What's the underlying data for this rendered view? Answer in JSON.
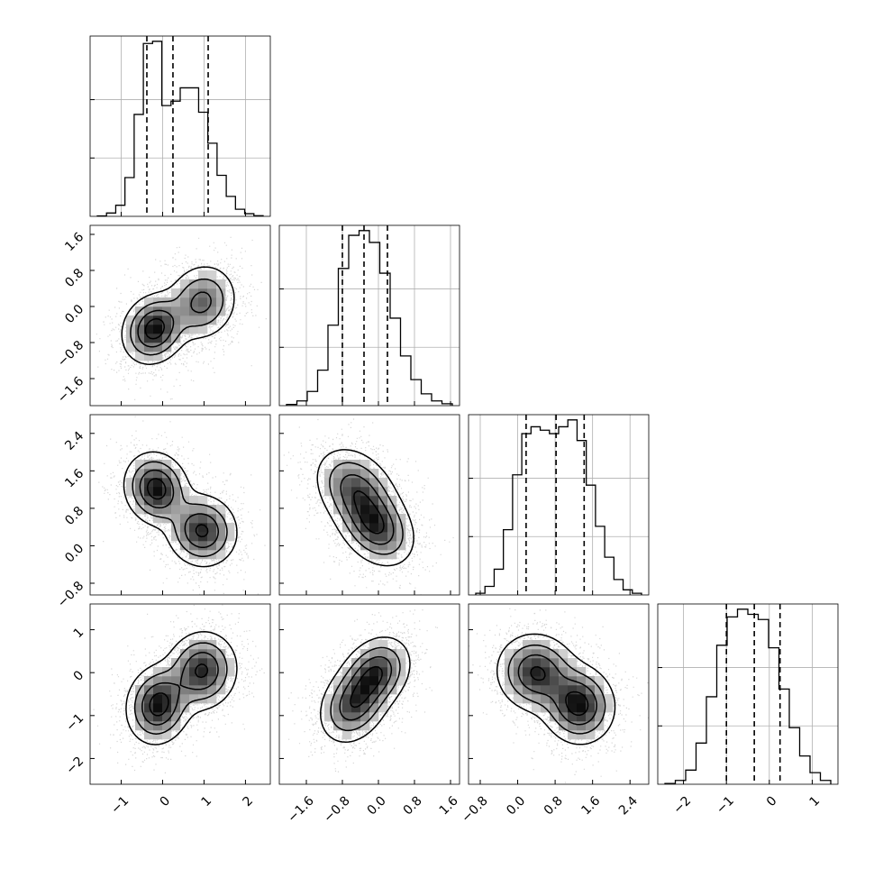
{
  "chart_data": {
    "type": "corner",
    "grid": true,
    "variables": [
      {
        "name": "",
        "range": [
          -1.75,
          2.6
        ],
        "ticks": [
          -1,
          0,
          1,
          2
        ],
        "tick_labels": [
          "−1",
          "0",
          "1",
          "2"
        ],
        "quantiles": [
          -0.38,
          0.25,
          1.1
        ]
      },
      {
        "name": "",
        "range": [
          -2.2,
          1.8
        ],
        "ticks": [
          -1.6,
          -0.8,
          0.0,
          0.8,
          1.6
        ],
        "tick_labels": [
          "−1.6",
          "−0.8",
          "0.0",
          "0.8",
          "1.6"
        ],
        "quantiles": [
          -0.8,
          -0.32,
          0.2
        ]
      },
      {
        "name": "",
        "range": [
          -1.05,
          2.8
        ],
        "ticks": [
          -0.8,
          0.0,
          0.8,
          1.6,
          2.4
        ],
        "tick_labels": [
          "−0.8",
          "0.0",
          "0.8",
          "1.6",
          "2.4"
        ],
        "quantiles": [
          0.18,
          0.82,
          1.42
        ]
      },
      {
        "name": "",
        "range": [
          -2.6,
          1.6
        ],
        "ticks": [
          -2,
          -1,
          0,
          1
        ],
        "tick_labels": [
          "−2",
          "−1",
          "0",
          "1"
        ],
        "quantiles": [
          -1.0,
          -0.35,
          0.25
        ]
      }
    ],
    "histograms": [
      {
        "counts": [
          2,
          15,
          50,
          175,
          460,
          780,
          790,
          500,
          520,
          580,
          580,
          470,
          330,
          185,
          90,
          32,
          12,
          3
        ]
      },
      {
        "counts": [
          5,
          20,
          60,
          150,
          340,
          580,
          720,
          740,
          690,
          560,
          370,
          210,
          110,
          50,
          20,
          8
        ]
      },
      {
        "counts": [
          5,
          25,
          75,
          190,
          350,
          470,
          490,
          480,
          470,
          490,
          510,
          450,
          320,
          200,
          110,
          45,
          15,
          5
        ]
      },
      {
        "counts": [
          3,
          15,
          55,
          160,
          340,
          540,
          650,
          680,
          660,
          640,
          530,
          370,
          220,
          110,
          45,
          15
        ]
      }
    ],
    "pairs": [
      {
        "x": 0,
        "y": 1,
        "modes": [
          {
            "cx": -0.2,
            "cy": -0.5,
            "sx": 0.38,
            "sy": 0.38,
            "r": 0.15,
            "w": 0.55
          },
          {
            "cx": 0.95,
            "cy": 0.1,
            "sx": 0.42,
            "sy": 0.42,
            "r": 0.1,
            "w": 0.45
          }
        ]
      },
      {
        "x": 0,
        "y": 2,
        "modes": [
          {
            "cx": -0.15,
            "cy": 1.22,
            "sx": 0.38,
            "sy": 0.38,
            "r": -0.1,
            "w": 0.5
          },
          {
            "cx": 0.95,
            "cy": 0.32,
            "sx": 0.42,
            "sy": 0.38,
            "r": -0.05,
            "w": 0.5
          }
        ]
      },
      {
        "x": 1,
        "y": 2,
        "modes": [
          {
            "cx": -0.5,
            "cy": 1.2,
            "sx": 0.45,
            "sy": 0.45,
            "r": -0.3,
            "w": 0.5
          },
          {
            "cx": -0.05,
            "cy": 0.4,
            "sx": 0.42,
            "sy": 0.42,
            "r": -0.3,
            "w": 0.5
          }
        ]
      },
      {
        "x": 0,
        "y": 3,
        "modes": [
          {
            "cx": -0.1,
            "cy": -0.75,
            "sx": 0.38,
            "sy": 0.45,
            "r": 0.1,
            "w": 0.5
          },
          {
            "cx": 0.95,
            "cy": 0.05,
            "sx": 0.42,
            "sy": 0.45,
            "r": 0.05,
            "w": 0.5
          }
        ]
      },
      {
        "x": 1,
        "y": 3,
        "modes": [
          {
            "cx": -0.05,
            "cy": 0.0,
            "sx": 0.38,
            "sy": 0.42,
            "r": 0.25,
            "w": 0.5
          },
          {
            "cx": -0.55,
            "cy": -0.75,
            "sx": 0.38,
            "sy": 0.45,
            "r": 0.25,
            "w": 0.5
          }
        ]
      },
      {
        "x": 2,
        "y": 3,
        "modes": [
          {
            "cx": 0.4,
            "cy": 0.0,
            "sx": 0.42,
            "sy": 0.45,
            "r": -0.05,
            "w": 0.5
          },
          {
            "cx": 1.3,
            "cy": -0.75,
            "sx": 0.38,
            "sy": 0.45,
            "r": -0.05,
            "w": 0.5
          }
        ]
      }
    ]
  }
}
